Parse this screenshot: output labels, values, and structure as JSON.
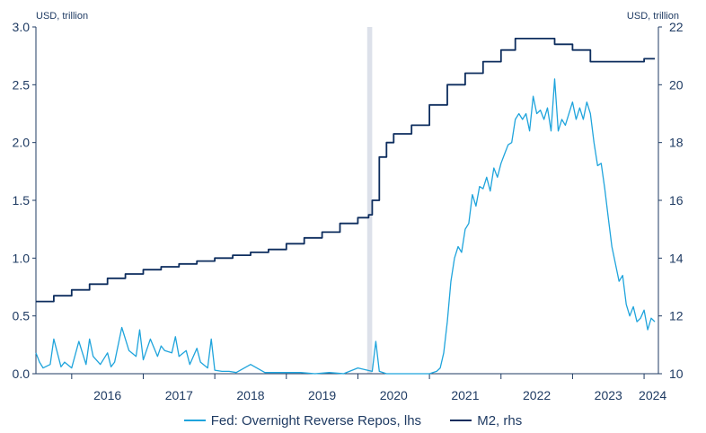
{
  "chart_data": {
    "type": "line",
    "left_axis_label": "USD, trillion",
    "right_axis_label": "USD, trillion",
    "ylim_left": [
      0,
      3.0
    ],
    "ylim_right": [
      10,
      22
    ],
    "yticks_left": [
      "0.0",
      "0.5",
      "1.0",
      "1.5",
      "2.0",
      "2.5",
      "3.0"
    ],
    "yticks_right": [
      "10",
      "12",
      "14",
      "16",
      "18",
      "20",
      "22"
    ],
    "x_year_labels": [
      "2016",
      "2017",
      "2018",
      "2019",
      "2020",
      "2021",
      "2022",
      "2023",
      "2024"
    ],
    "x_range": [
      2015.5,
      2024.2
    ],
    "shaded_period": [
      2020.13,
      2020.2
    ],
    "colors": {
      "rrp": "#1fa4dc",
      "m2": "#0d2d5e",
      "shade": "#dde1ea",
      "axis": "#1f3b63"
    },
    "series": [
      {
        "name": "Fed: Overnight Reverse Repos, lhs",
        "axis": "left",
        "x": [
          2015.5,
          2015.55,
          2015.6,
          2015.7,
          2015.75,
          2015.85,
          2015.9,
          2016.0,
          2016.1,
          2016.2,
          2016.25,
          2016.3,
          2016.4,
          2016.5,
          2016.55,
          2016.6,
          2016.7,
          2016.8,
          2016.9,
          2016.95,
          2017.0,
          2017.1,
          2017.2,
          2017.25,
          2017.3,
          2017.4,
          2017.45,
          2017.5,
          2017.6,
          2017.65,
          2017.75,
          2017.8,
          2017.9,
          2017.95,
          2018.0,
          2018.1,
          2018.2,
          2018.3,
          2018.5,
          2018.7,
          2018.9,
          2019.0,
          2019.2,
          2019.4,
          2019.6,
          2019.8,
          2020.0,
          2020.2,
          2020.25,
          2020.3,
          2020.4,
          2020.6,
          2020.8,
          2021.0,
          2021.1,
          2021.15,
          2021.2,
          2021.25,
          2021.3,
          2021.35,
          2021.4,
          2021.45,
          2021.5,
          2021.55,
          2021.6,
          2021.65,
          2021.7,
          2021.75,
          2021.8,
          2021.85,
          2021.9,
          2021.95,
          2022.0,
          2022.05,
          2022.1,
          2022.15,
          2022.2,
          2022.25,
          2022.3,
          2022.35,
          2022.4,
          2022.45,
          2022.5,
          2022.55,
          2022.6,
          2022.65,
          2022.7,
          2022.75,
          2022.8,
          2022.85,
          2022.9,
          2022.95,
          2023.0,
          2023.05,
          2023.1,
          2023.15,
          2023.2,
          2023.25,
          2023.3,
          2023.35,
          2023.4,
          2023.45,
          2023.5,
          2023.55,
          2023.6,
          2023.65,
          2023.7,
          2023.75,
          2023.8,
          2023.85,
          2023.9,
          2023.95,
          2024.0,
          2024.05,
          2024.1,
          2024.15
        ],
        "values": [
          0.18,
          0.1,
          0.05,
          0.08,
          0.3,
          0.06,
          0.1,
          0.05,
          0.28,
          0.08,
          0.3,
          0.15,
          0.08,
          0.18,
          0.06,
          0.1,
          0.4,
          0.2,
          0.15,
          0.38,
          0.12,
          0.3,
          0.15,
          0.24,
          0.2,
          0.18,
          0.32,
          0.15,
          0.2,
          0.08,
          0.22,
          0.1,
          0.05,
          0.3,
          0.03,
          0.02,
          0.02,
          0.01,
          0.08,
          0.01,
          0.01,
          0.01,
          0.01,
          0.0,
          0.01,
          0.0,
          0.05,
          0.02,
          0.28,
          0.02,
          0.0,
          0.0,
          0.0,
          0.0,
          0.02,
          0.05,
          0.18,
          0.45,
          0.8,
          1.0,
          1.1,
          1.05,
          1.25,
          1.3,
          1.55,
          1.45,
          1.62,
          1.6,
          1.7,
          1.58,
          1.78,
          1.7,
          1.82,
          1.9,
          1.98,
          2.0,
          2.2,
          2.25,
          2.2,
          2.25,
          2.1,
          2.4,
          2.25,
          2.28,
          2.2,
          2.3,
          2.1,
          2.55,
          2.1,
          2.2,
          2.15,
          2.25,
          2.35,
          2.2,
          2.3,
          2.2,
          2.35,
          2.25,
          2.0,
          1.8,
          1.82,
          1.6,
          1.35,
          1.1,
          0.95,
          0.8,
          0.85,
          0.6,
          0.5,
          0.58,
          0.45,
          0.48,
          0.55,
          0.38,
          0.48,
          0.45
        ]
      },
      {
        "name": "M2, rhs",
        "axis": "right",
        "x": [
          2015.5,
          2015.75,
          2016.0,
          2016.25,
          2016.5,
          2016.75,
          2017.0,
          2017.25,
          2017.5,
          2017.75,
          2018.0,
          2018.25,
          2018.5,
          2018.75,
          2019.0,
          2019.25,
          2019.5,
          2019.75,
          2020.0,
          2020.15,
          2020.2,
          2020.3,
          2020.4,
          2020.5,
          2020.75,
          2021.0,
          2021.25,
          2021.5,
          2021.75,
          2022.0,
          2022.2,
          2022.5,
          2022.75,
          2023.0,
          2023.25,
          2023.5,
          2023.75,
          2024.0,
          2024.1,
          2024.15
        ],
        "values": [
          12.5,
          12.7,
          12.9,
          13.1,
          13.3,
          13.45,
          13.6,
          13.7,
          13.8,
          13.9,
          14.0,
          14.1,
          14.2,
          14.3,
          14.5,
          14.7,
          14.9,
          15.2,
          15.4,
          15.5,
          16.0,
          17.5,
          18.0,
          18.3,
          18.6,
          19.3,
          20.0,
          20.4,
          20.8,
          21.2,
          21.6,
          21.6,
          21.4,
          21.2,
          20.8,
          20.8,
          20.8,
          20.9,
          20.9,
          20.9
        ]
      }
    ]
  }
}
